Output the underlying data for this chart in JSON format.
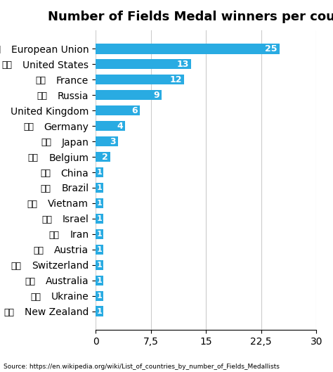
{
  "title": "Number of Fields Medal winners per country",
  "categories": [
    "European Union",
    "United States",
    "France",
    "Russia",
    "United Kingdom",
    "Germany",
    "Japan",
    "Belgium",
    "China",
    "Brazil",
    "Vietnam",
    "Israel",
    "Iran",
    "Austria",
    "Switzerland",
    "Australia",
    "Ukraine",
    "New Zealand"
  ],
  "values": [
    25,
    13,
    12,
    9,
    6,
    4,
    3,
    2,
    1,
    1,
    1,
    1,
    1,
    1,
    1,
    1,
    1,
    1
  ],
  "bar_color": "#29ABE2",
  "label_color": "#FFFFFF",
  "background_color": "#FFFFFF",
  "xticks": [
    0,
    7.5,
    15,
    22.5,
    30
  ],
  "xtick_labels": [
    "0",
    "7,5",
    "15",
    "22,5",
    "30"
  ],
  "xlim": [
    0,
    30
  ],
  "source_text": "Source: https://en.wikipedia.org/wiki/List_of_countries_by_number_of_Fields_Medallists",
  "title_fontsize": 13,
  "tick_fontsize": 10,
  "label_fontsize": 9,
  "country_fontsize": 10
}
